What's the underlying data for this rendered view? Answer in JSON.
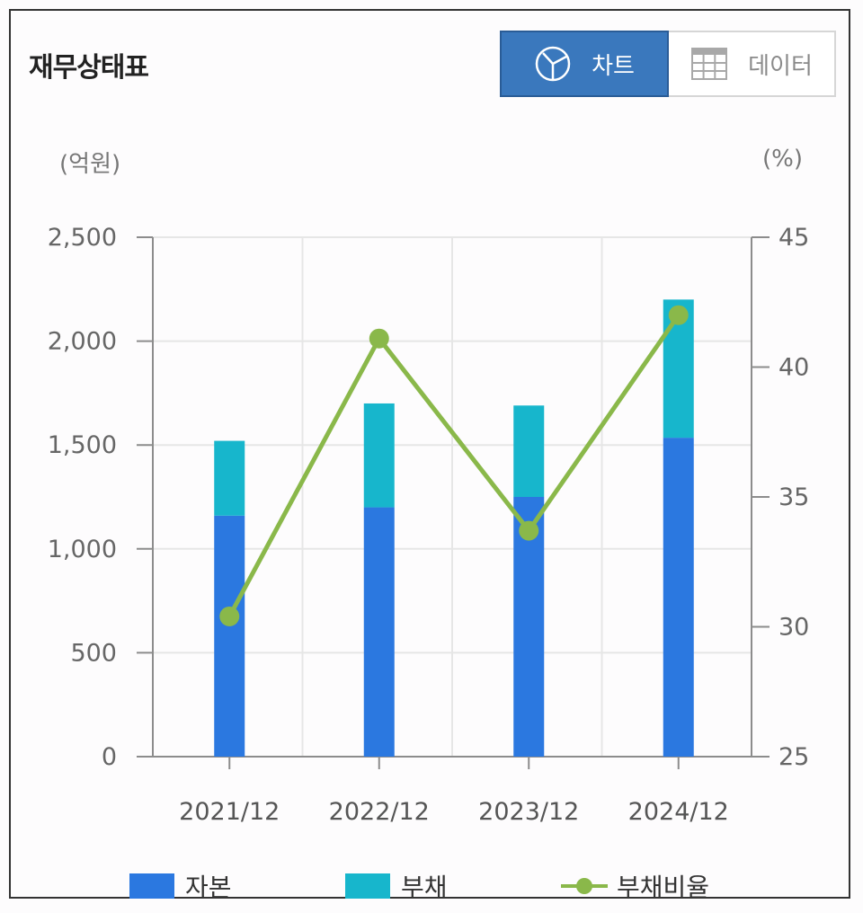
{
  "header": {
    "title": "재무상태표",
    "chart_button": "차트",
    "data_button": "데이터"
  },
  "colors": {
    "equity": "#2b78e0",
    "liabilities": "#17b6cc",
    "ratio": "#8ab84a"
  },
  "chart_data": {
    "type": "bar",
    "stacked": true,
    "categories": [
      "2021/12",
      "2022/12",
      "2023/12",
      "2024/12"
    ],
    "series": [
      {
        "name": "자본",
        "type": "bar",
        "axis": "left",
        "values": [
          1160,
          1200,
          1250,
          1535
        ]
      },
      {
        "name": "부채",
        "type": "bar",
        "axis": "left",
        "values": [
          360,
          500,
          440,
          665
        ]
      },
      {
        "name": "부채비율",
        "type": "line",
        "axis": "right",
        "values": [
          30.4,
          41.1,
          33.7,
          42.0
        ]
      }
    ],
    "y_left": {
      "unit": "(억원)",
      "ylim": [
        0,
        2500
      ],
      "ticks": [
        "0",
        "500",
        "1,000",
        "1,500",
        "2,000",
        "2,500"
      ],
      "tick_values": [
        0,
        500,
        1000,
        1500,
        2000,
        2500
      ]
    },
    "y_right": {
      "unit": "(%)",
      "ylim": [
        25,
        45
      ],
      "ticks": [
        "25",
        "30",
        "35",
        "40",
        "45"
      ],
      "tick_values": [
        25,
        30,
        35,
        40,
        45
      ]
    },
    "grid": true,
    "legend": "bottom"
  }
}
